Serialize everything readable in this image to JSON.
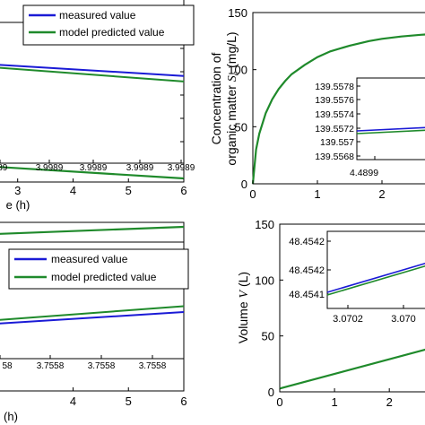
{
  "colors": {
    "measured": "#1a1ad6",
    "model": "#1f8a2b",
    "background": "#ffffff"
  },
  "chart_data": [
    {
      "id": "top-left",
      "type": "line",
      "x_ticks": [
        "3",
        "4",
        "5",
        "6"
      ],
      "xlabel_fragment": "e (h)",
      "xlim": [
        2.6,
        6
      ],
      "legend": {
        "position": "top",
        "entries": [
          "measured value",
          "model predicted value"
        ]
      },
      "inset": {
        "x_ticks": [
          "989",
          "3.9989",
          "3.9989",
          "3.9989",
          "3.9989"
        ]
      },
      "series": [
        {
          "name": "measured value",
          "x": [
            2.6,
            6
          ],
          "y": [
            0.7,
            0.62
          ]
        },
        {
          "name": "model predicted value",
          "x": [
            2.6,
            6
          ],
          "y": [
            0.68,
            0.58
          ]
        }
      ]
    },
    {
      "id": "top-right",
      "type": "line",
      "ylabel": "Concentration of organic matter S_c (mg/L)",
      "ylabel_line1": "Concentration of",
      "ylabel_line2_prefix": "organic matter ",
      "ylabel_symbol": "S",
      "ylabel_sub": "c",
      "ylabel_unit": "(mg/L)",
      "y_ticks": [
        "0",
        "50",
        "100",
        "150"
      ],
      "x_ticks": [
        "0",
        "1",
        "2"
      ],
      "ylim": [
        0,
        150
      ],
      "xlim": [
        0,
        2.75
      ],
      "inset": {
        "y_ticks": [
          "139.5578",
          "139.5576",
          "139.5574",
          "139.5572",
          "139.557",
          "139.5568"
        ],
        "x_ticks": [
          "4.4899"
        ]
      },
      "series": [
        {
          "x": [
            0,
            0.05,
            0.1,
            0.2,
            0.3,
            0.4,
            0.5,
            0.6,
            0.8,
            1.0,
            1.2,
            1.5,
            1.8,
            2.0,
            2.3,
            2.6,
            2.75
          ],
          "y": [
            0,
            30,
            44,
            62,
            74,
            83,
            90,
            96,
            104,
            111,
            116,
            121,
            125,
            127,
            129,
            130.5,
            131
          ]
        }
      ]
    },
    {
      "id": "bottom-left",
      "type": "line",
      "x_ticks": [
        "4",
        "5",
        "6"
      ],
      "xlabel_fragment": "(h)",
      "xlim": [
        2.6,
        6
      ],
      "legend": {
        "position": "top",
        "entries": [
          "measured value",
          "model predicted value"
        ]
      },
      "inset": {
        "x_ticks": [
          "58",
          "3.7558",
          "3.7558",
          "3.7558"
        ]
      },
      "series": [
        {
          "name": "measured value",
          "x": [
            2.6,
            6
          ],
          "y": [
            0.3,
            0.4
          ]
        },
        {
          "name": "model predicted value",
          "x": [
            2.6,
            6
          ],
          "y": [
            0.33,
            0.45
          ]
        }
      ]
    },
    {
      "id": "bottom-right",
      "type": "line",
      "ylabel": "Volume V (L)",
      "ylabel_prefix": "Volume ",
      "ylabel_symbol": "V",
      "ylabel_unit": " (L)",
      "y_ticks": [
        "0",
        "50",
        "100",
        "150"
      ],
      "x_ticks": [
        "0",
        "1",
        "2"
      ],
      "ylim": [
        0,
        150
      ],
      "xlim": [
        0,
        2.75
      ],
      "inset": {
        "y_ticks": [
          "48.4542",
          "48.4542",
          "48.4541"
        ],
        "x_ticks": [
          "3.0702",
          "3.070"
        ]
      },
      "series": [
        {
          "x": [
            0,
            2.75
          ],
          "y": [
            3,
            39
          ]
        }
      ]
    }
  ]
}
